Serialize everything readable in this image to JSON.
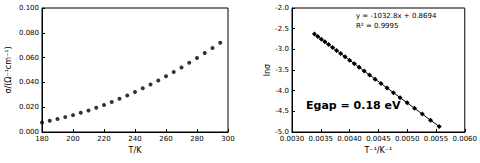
{
  "chart_data": [
    {
      "type": "scatter",
      "x": [
        180,
        185,
        190,
        195,
        200,
        205,
        210,
        215,
        220,
        225,
        230,
        235,
        240,
        245,
        250,
        255,
        260,
        265,
        270,
        275,
        280,
        285,
        290,
        295
      ],
      "values": [
        0.0077,
        0.009,
        0.0104,
        0.012,
        0.0136,
        0.0155,
        0.0174,
        0.0196,
        0.0218,
        0.0242,
        0.0268,
        0.0294,
        0.0323,
        0.0352,
        0.0383,
        0.0416,
        0.0449,
        0.0484,
        0.052,
        0.0558,
        0.0597,
        0.0637,
        0.0678,
        0.072
      ],
      "color": "#000000",
      "marker": "circle",
      "x_label": "T/K",
      "y_label": "σ/(Ω⁻¹cm⁻¹)",
      "xlim": [
        180,
        300
      ],
      "xticks": [
        180,
        200,
        220,
        240,
        260,
        280,
        300
      ],
      "ylim": [
        0,
        0.1
      ],
      "yticks": [
        {
          "value": 0,
          "label": "0.000"
        },
        {
          "value": 0.02,
          "label": "0.020"
        },
        {
          "value": 0.04,
          "label": "0.040"
        },
        {
          "value": 0.06,
          "label": "0.060"
        },
        {
          "value": 0.08,
          "label": "0.080"
        },
        {
          "value": 0.1,
          "label": "0.100"
        }
      ],
      "grid": false
    },
    {
      "type": "line",
      "x": [
        0.005556,
        0.005405,
        0.005263,
        0.005128,
        0.005,
        0.004878,
        0.004762,
        0.004651,
        0.004545,
        0.004444,
        0.004348,
        0.004255,
        0.004167,
        0.004082,
        0.004,
        0.003922,
        0.003846,
        0.003774,
        0.003704,
        0.003636,
        0.003571,
        0.003509,
        0.003448,
        0.00339
      ],
      "values": [
        -4.868,
        -4.713,
        -4.566,
        -4.427,
        -4.295,
        -4.169,
        -4.049,
        -3.934,
        -3.825,
        -3.721,
        -3.621,
        -3.526,
        -3.434,
        -3.346,
        -3.262,
        -3.181,
        -3.103,
        -3.028,
        -2.956,
        -2.886,
        -2.819,
        -2.754,
        -2.692,
        -2.632
      ],
      "color": "#000000",
      "marker": "diamond",
      "line_style": "solid",
      "x_label": "T⁻¹/K⁻¹",
      "y_label": "lnσ",
      "xlim": [
        0.003,
        0.006
      ],
      "xticks": [
        {
          "value": 0.003,
          "label": "0.0030"
        },
        {
          "value": 0.0035,
          "label": "0.0035"
        },
        {
          "value": 0.004,
          "label": "0.0040"
        },
        {
          "value": 0.0045,
          "label": "0.0045"
        },
        {
          "value": 0.005,
          "label": "0.0050"
        },
        {
          "value": 0.0055,
          "label": "0.0055"
        },
        {
          "value": 0.006,
          "label": "0.0060"
        }
      ],
      "ylim": [
        -5,
        -2
      ],
      "yticks": [
        {
          "value": -5,
          "label": "-5.0"
        },
        {
          "value": -4.5,
          "label": "-4.5"
        },
        {
          "value": -4,
          "label": "-4.0"
        },
        {
          "value": -3.5,
          "label": "-3.5"
        },
        {
          "value": -3,
          "label": "-3.0"
        },
        {
          "value": -2.5,
          "label": "-2.5"
        },
        {
          "value": -2,
          "label": "-2.0"
        }
      ],
      "grid": false,
      "annotations": [
        "y = -1032.8x + 0.8694",
        "R² = 0.9995",
        "Egap = 0.18 eV"
      ]
    }
  ]
}
